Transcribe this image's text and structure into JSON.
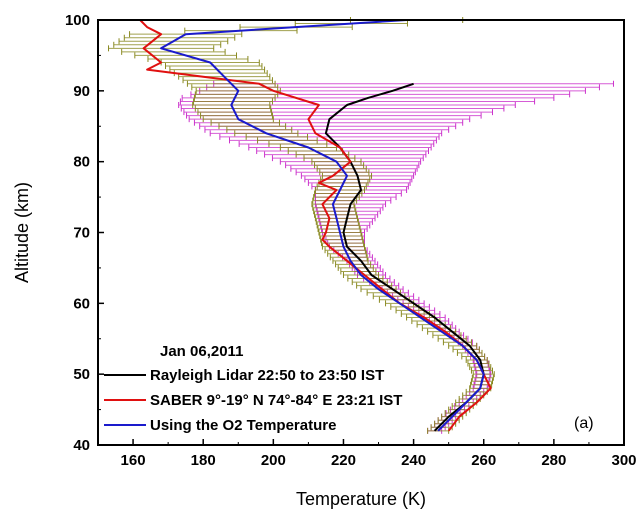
{
  "chart_data": {
    "type": "line",
    "title": "",
    "xlabel": "Temperature (K)",
    "ylabel": "Altitude (km)",
    "xlim": [
      150,
      300
    ],
    "ylim": [
      40,
      100
    ],
    "x_ticks": [
      160,
      180,
      200,
      220,
      240,
      260,
      280,
      300
    ],
    "y_ticks": [
      40,
      50,
      60,
      70,
      80,
      90,
      100
    ],
    "grid": false,
    "legend_position": "bottom-left",
    "legend_header": "Jan 06,2011",
    "annotation": "(a)",
    "series": [
      {
        "name": "Rayleigh Lidar 22:50 to 23:50 IST",
        "color": "#000000",
        "errorbar_color": "#cc33cc",
        "y": [
          42,
          44,
          46,
          48,
          50,
          52,
          54,
          56,
          58,
          60,
          62,
          64,
          66,
          68,
          70,
          72,
          74,
          76,
          78,
          80,
          82,
          84,
          86,
          88,
          89,
          90,
          91
        ],
        "x": [
          246,
          250,
          255,
          259,
          260,
          259,
          256,
          251,
          246,
          240,
          234,
          228,
          225,
          221,
          220,
          221,
          222,
          225,
          224,
          222,
          219,
          215,
          216,
          221,
          227,
          234,
          240
        ],
        "err": [
          2,
          2,
          2,
          2,
          2,
          2,
          2,
          2,
          3,
          3,
          3,
          4,
          4,
          5,
          6,
          8,
          10,
          13,
          16,
          20,
          26,
          33,
          40,
          48,
          53,
          55,
          57
        ]
      },
      {
        "name": "SABER 9°-19° N 74°-84° E 23:21 IST",
        "color": "#e01010",
        "y": [
          42,
          44,
          46,
          48,
          50,
          52,
          54,
          56,
          58,
          60,
          62,
          64,
          66,
          68,
          69,
          70,
          72,
          74,
          76,
          77,
          78,
          80,
          82,
          84,
          86,
          88,
          90,
          91,
          92,
          93,
          94,
          96,
          98,
          99,
          100
        ],
        "x": [
          250,
          253,
          258,
          262,
          260,
          258,
          254,
          249,
          243,
          236,
          231,
          226,
          221,
          216,
          214,
          215,
          216,
          214,
          218,
          213,
          217,
          222,
          219,
          212,
          210,
          213,
          200,
          196,
          180,
          164,
          168,
          163,
          168,
          164,
          162
        ],
        "err": []
      },
      {
        "name": "Using the O2 Temperature",
        "color": "#1a1acc",
        "errorbar_color": "#8a8a22",
        "y": [
          42,
          44,
          46,
          48,
          50,
          52,
          54,
          56,
          58,
          60,
          62,
          64,
          66,
          68,
          70,
          72,
          74,
          76,
          78,
          80,
          82,
          84,
          86,
          88,
          90,
          92,
          94,
          96,
          98,
          100
        ],
        "x": [
          247,
          251,
          255,
          259,
          260,
          258,
          254,
          248,
          242,
          236,
          230,
          225,
          222,
          220,
          219,
          218,
          217,
          219,
          221,
          218,
          210,
          198,
          190,
          188,
          190,
          186,
          182,
          168,
          175,
          238
        ],
        "err": [
          3,
          3,
          3,
          3,
          3,
          3,
          4,
          4,
          4,
          4,
          5,
          5,
          5,
          6,
          6,
          6,
          6,
          7,
          7,
          7,
          8,
          9,
          10,
          11,
          12,
          13,
          14,
          15,
          16,
          16
        ]
      }
    ]
  }
}
